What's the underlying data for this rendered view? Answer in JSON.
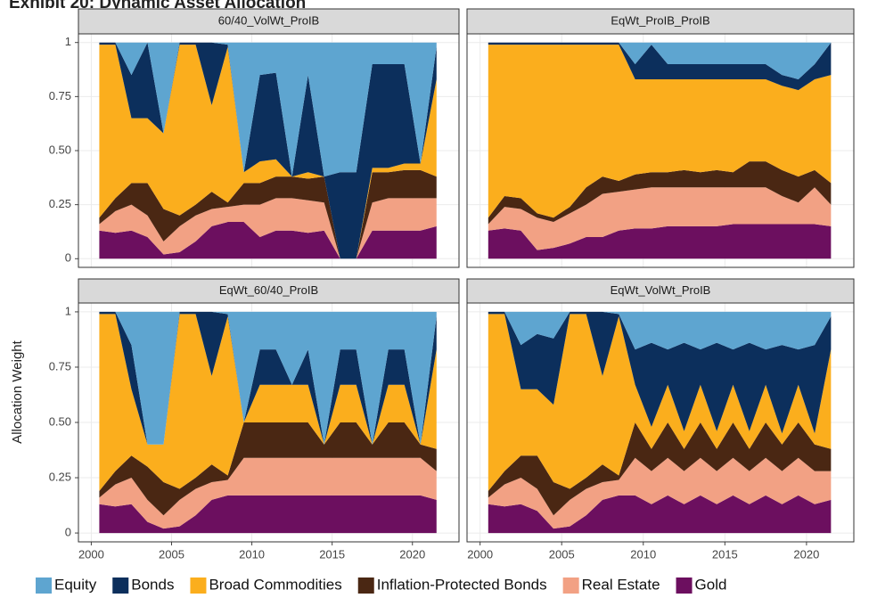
{
  "title": "Exhibit 20: Dynamic Asset Allocation",
  "y_label": "Allocation Weight",
  "chart_data": [
    {
      "type": "area",
      "title": "60/40_VolWt_ProIB",
      "x": [
        2000.5,
        2001.5,
        2002.5,
        2003.5,
        2004.5,
        2005.5,
        2006.5,
        2007.5,
        2008.5,
        2009.5,
        2010.5,
        2011.5,
        2012.5,
        2013.5,
        2014.5,
        2015.5,
        2016.5,
        2017.5,
        2018.5,
        2019.5,
        2020.5,
        2021.5
      ],
      "xlim": [
        1999.2,
        2022.9
      ],
      "xticks": [
        2000,
        2005,
        2010,
        2015,
        2020
      ],
      "ylim": [
        -0.04,
        1.04
      ],
      "yticks": [
        0,
        0.25,
        {
          "value": 0.5,
          "label": "0.50"
        },
        0.75,
        1
      ],
      "grid": true,
      "series": [
        {
          "name": "Equity",
          "color": "#5ea5d0",
          "values": [
            0,
            0,
            0.15,
            0,
            0.42,
            0,
            0,
            0,
            0.01,
            0.6,
            0.15,
            0.14,
            0.62,
            0.15,
            0.62,
            0.6,
            0.6,
            0.1,
            0.1,
            0.1,
            0.56,
            0.02
          ]
        },
        {
          "name": "Bonds",
          "color": "#0c2f5c",
          "values": [
            0.01,
            0.01,
            0.2,
            0.35,
            0,
            0.01,
            0.01,
            0.29,
            0.01,
            0,
            0.4,
            0.4,
            0,
            0.45,
            0,
            0.4,
            0.4,
            0.48,
            0.48,
            0.46,
            0,
            0.15
          ]
        },
        {
          "name": "Broad Commodities",
          "color": "#fbae1d",
          "values": [
            0.8,
            0.71,
            0.3,
            0.3,
            0.35,
            0.79,
            0.74,
            0.4,
            0.72,
            0.05,
            0.1,
            0.08,
            0,
            0.03,
            0,
            0,
            0,
            0.02,
            0.02,
            0.03,
            0.03,
            0.45
          ]
        },
        {
          "name": "Inflation-Protected Bonds",
          "color": "#4a2713",
          "values": [
            0.03,
            0.06,
            0.1,
            0.15,
            0.15,
            0.05,
            0.05,
            0.08,
            0.02,
            0.1,
            0.1,
            0.1,
            0.1,
            0.1,
            0.12,
            0,
            0,
            0.14,
            0.12,
            0.13,
            0.13,
            0.1
          ]
        },
        {
          "name": "Real Estate",
          "color": "#f2a184",
          "values": [
            0.03,
            0.1,
            0.12,
            0.1,
            0.06,
            0.12,
            0.12,
            0.08,
            0.07,
            0.08,
            0.15,
            0.15,
            0.15,
            0.15,
            0.13,
            0,
            0,
            0.13,
            0.15,
            0.15,
            0.15,
            0.13
          ]
        },
        {
          "name": "Gold",
          "color": "#6c0f5f",
          "values": [
            0.13,
            0.12,
            0.13,
            0.1,
            0.02,
            0.03,
            0.08,
            0.15,
            0.17,
            0.17,
            0.1,
            0.13,
            0.13,
            0.12,
            0.13,
            0,
            0,
            0.13,
            0.13,
            0.13,
            0.13,
            0.15
          ]
        }
      ]
    },
    {
      "type": "area",
      "title": "EqWt_ProIB_ProIB",
      "x": [
        2000.5,
        2001.5,
        2002.5,
        2003.5,
        2004.5,
        2005.5,
        2006.5,
        2007.5,
        2008.5,
        2009.5,
        2010.5,
        2011.5,
        2012.5,
        2013.5,
        2014.5,
        2015.5,
        2016.5,
        2017.5,
        2018.5,
        2019.5,
        2020.5,
        2021.5
      ],
      "xlim": [
        1999.2,
        2022.9
      ],
      "xticks": [
        2000,
        2005,
        2010,
        2015,
        2020
      ],
      "ylim": [
        -0.04,
        1.04
      ],
      "yticks": [
        0,
        0.25,
        {
          "value": 0.5,
          "label": "0.50"
        },
        0.75,
        1
      ],
      "grid": true,
      "series": [
        {
          "name": "Equity",
          "color": "#5ea5d0",
          "values": [
            0,
            0,
            0,
            0,
            0,
            0,
            0,
            0,
            0,
            0.1,
            0.01,
            0.1,
            0.1,
            0.1,
            0.1,
            0.1,
            0.1,
            0.1,
            0.15,
            0.17,
            0.1,
            0
          ]
        },
        {
          "name": "Bonds",
          "color": "#0c2f5c",
          "values": [
            0.01,
            0.01,
            0.01,
            0.01,
            0.01,
            0.01,
            0.01,
            0.01,
            0.01,
            0.07,
            0.16,
            0.07,
            0.07,
            0.07,
            0.07,
            0.07,
            0.07,
            0.07,
            0.05,
            0.05,
            0.07,
            0.15
          ]
        },
        {
          "name": "Broad Commodities",
          "color": "#fbae1d",
          "values": [
            0.8,
            0.7,
            0.71,
            0.78,
            0.8,
            0.75,
            0.66,
            0.61,
            0.63,
            0.44,
            0.43,
            0.43,
            0.42,
            0.43,
            0.42,
            0.43,
            0.38,
            0.38,
            0.39,
            0.4,
            0.42,
            0.5
          ]
        },
        {
          "name": "Inflation-Protected Bonds",
          "color": "#4a2713",
          "values": [
            0.03,
            0.05,
            0.05,
            0.02,
            0.02,
            0.03,
            0.08,
            0.08,
            0.05,
            0.07,
            0.07,
            0.07,
            0.08,
            0.07,
            0.08,
            0.07,
            0.12,
            0.12,
            0.12,
            0.12,
            0.08,
            0.1
          ]
        },
        {
          "name": "Real Estate",
          "color": "#f2a184",
          "values": [
            0.03,
            0.1,
            0.1,
            0.15,
            0.12,
            0.14,
            0.15,
            0.2,
            0.18,
            0.18,
            0.19,
            0.18,
            0.18,
            0.18,
            0.18,
            0.17,
            0.17,
            0.17,
            0.13,
            0.1,
            0.17,
            0.1
          ]
        },
        {
          "name": "Gold",
          "color": "#6c0f5f",
          "values": [
            0.13,
            0.14,
            0.13,
            0.04,
            0.05,
            0.07,
            0.1,
            0.1,
            0.13,
            0.14,
            0.14,
            0.15,
            0.15,
            0.15,
            0.15,
            0.16,
            0.16,
            0.16,
            0.16,
            0.16,
            0.16,
            0.15
          ]
        }
      ]
    },
    {
      "type": "area",
      "title": "EqWt_60/40_ProIB",
      "x": [
        2000.5,
        2001.5,
        2002.5,
        2003.5,
        2004.5,
        2005.5,
        2006.5,
        2007.5,
        2008.5,
        2009.5,
        2010.5,
        2011.5,
        2012.5,
        2013.5,
        2014.5,
        2015.5,
        2016.5,
        2017.5,
        2018.5,
        2019.5,
        2020.5,
        2021.5
      ],
      "xlim": [
        1999.2,
        2022.9
      ],
      "xticks": [
        2000,
        2005,
        2010,
        2015,
        2020
      ],
      "ylim": [
        -0.04,
        1.04
      ],
      "yticks": [
        0,
        0.25,
        {
          "value": 0.5,
          "label": "0.50"
        },
        0.75,
        1
      ],
      "grid": true,
      "series": [
        {
          "name": "Equity",
          "color": "#5ea5d0",
          "values": [
            0,
            0,
            0.15,
            0.6,
            0.6,
            0,
            0,
            0,
            0.01,
            0.5,
            0.17,
            0.17,
            0.33,
            0.17,
            0.6,
            0.17,
            0.17,
            0.6,
            0.17,
            0.17,
            0.6,
            0.02
          ]
        },
        {
          "name": "Bonds",
          "color": "#0c2f5c",
          "values": [
            0.01,
            0.01,
            0.2,
            0,
            0,
            0.01,
            0.01,
            0.29,
            0.01,
            0,
            0.16,
            0.16,
            0,
            0.16,
            0,
            0.16,
            0.16,
            0,
            0.16,
            0.16,
            0,
            0.15
          ]
        },
        {
          "name": "Broad Commodities",
          "color": "#fbae1d",
          "values": [
            0.8,
            0.71,
            0.3,
            0.1,
            0.17,
            0.79,
            0.74,
            0.4,
            0.72,
            0,
            0.17,
            0.17,
            0.17,
            0.17,
            0,
            0.17,
            0.17,
            0,
            0.17,
            0.17,
            0,
            0.45
          ]
        },
        {
          "name": "Inflation-Protected Bonds",
          "color": "#4a2713",
          "values": [
            0.03,
            0.06,
            0.1,
            0.15,
            0.15,
            0.05,
            0.05,
            0.08,
            0.02,
            0.16,
            0.16,
            0.16,
            0.16,
            0.16,
            0.06,
            0.16,
            0.16,
            0.06,
            0.16,
            0.16,
            0.06,
            0.1
          ]
        },
        {
          "name": "Real Estate",
          "color": "#f2a184",
          "values": [
            0.03,
            0.1,
            0.12,
            0.1,
            0.06,
            0.12,
            0.12,
            0.08,
            0.07,
            0.17,
            0.17,
            0.17,
            0.17,
            0.17,
            0.17,
            0.17,
            0.17,
            0.17,
            0.17,
            0.17,
            0.17,
            0.13
          ]
        },
        {
          "name": "Gold",
          "color": "#6c0f5f",
          "values": [
            0.13,
            0.12,
            0.13,
            0.05,
            0.02,
            0.03,
            0.08,
            0.15,
            0.17,
            0.17,
            0.17,
            0.17,
            0.17,
            0.17,
            0.17,
            0.17,
            0.17,
            0.17,
            0.17,
            0.17,
            0.17,
            0.15
          ]
        }
      ]
    },
    {
      "type": "area",
      "title": "EqWt_VolWt_ProIB",
      "x": [
        2000.5,
        2001.5,
        2002.5,
        2003.5,
        2004.5,
        2005.5,
        2006.5,
        2007.5,
        2008.5,
        2009.5,
        2010.5,
        2011.5,
        2012.5,
        2013.5,
        2014.5,
        2015.5,
        2016.5,
        2017.5,
        2018.5,
        2019.5,
        2020.5,
        2021.5
      ],
      "xlim": [
        1999.2,
        2022.9
      ],
      "xticks": [
        2000,
        2005,
        2010,
        2015,
        2020
      ],
      "ylim": [
        -0.04,
        1.04
      ],
      "yticks": [
        0,
        0.25,
        {
          "value": 0.5,
          "label": "0.50"
        },
        0.75,
        1
      ],
      "grid": true,
      "series": [
        {
          "name": "Equity",
          "color": "#5ea5d0",
          "values": [
            0,
            0,
            0.15,
            0.1,
            0.12,
            0,
            0,
            0,
            0.01,
            0.17,
            0.14,
            0.17,
            0.14,
            0.17,
            0.14,
            0.17,
            0.14,
            0.17,
            0.15,
            0.17,
            0.15,
            0.02
          ]
        },
        {
          "name": "Bonds",
          "color": "#0c2f5c",
          "values": [
            0.01,
            0.01,
            0.2,
            0.25,
            0.3,
            0.01,
            0.01,
            0.29,
            0.01,
            0.16,
            0.38,
            0.16,
            0.4,
            0.16,
            0.4,
            0.16,
            0.4,
            0.16,
            0.4,
            0.16,
            0.4,
            0.15
          ]
        },
        {
          "name": "Broad Commodities",
          "color": "#fbae1d",
          "values": [
            0.8,
            0.71,
            0.3,
            0.3,
            0.35,
            0.79,
            0.74,
            0.4,
            0.72,
            0.17,
            0.1,
            0.17,
            0.08,
            0.17,
            0.08,
            0.17,
            0.08,
            0.17,
            0.05,
            0.17,
            0.05,
            0.45
          ]
        },
        {
          "name": "Inflation-Protected Bonds",
          "color": "#4a2713",
          "values": [
            0.03,
            0.06,
            0.1,
            0.15,
            0.15,
            0.05,
            0.05,
            0.08,
            0.02,
            0.16,
            0.1,
            0.16,
            0.1,
            0.16,
            0.1,
            0.16,
            0.1,
            0.16,
            0.12,
            0.16,
            0.12,
            0.1
          ]
        },
        {
          "name": "Real Estate",
          "color": "#f2a184",
          "values": [
            0.03,
            0.1,
            0.12,
            0.1,
            0.06,
            0.12,
            0.12,
            0.08,
            0.07,
            0.17,
            0.15,
            0.17,
            0.15,
            0.17,
            0.15,
            0.17,
            0.15,
            0.17,
            0.15,
            0.17,
            0.15,
            0.13
          ]
        },
        {
          "name": "Gold",
          "color": "#6c0f5f",
          "values": [
            0.13,
            0.12,
            0.13,
            0.1,
            0.02,
            0.03,
            0.08,
            0.15,
            0.17,
            0.17,
            0.13,
            0.17,
            0.13,
            0.17,
            0.13,
            0.17,
            0.13,
            0.17,
            0.13,
            0.17,
            0.13,
            0.15
          ]
        }
      ]
    }
  ]
}
